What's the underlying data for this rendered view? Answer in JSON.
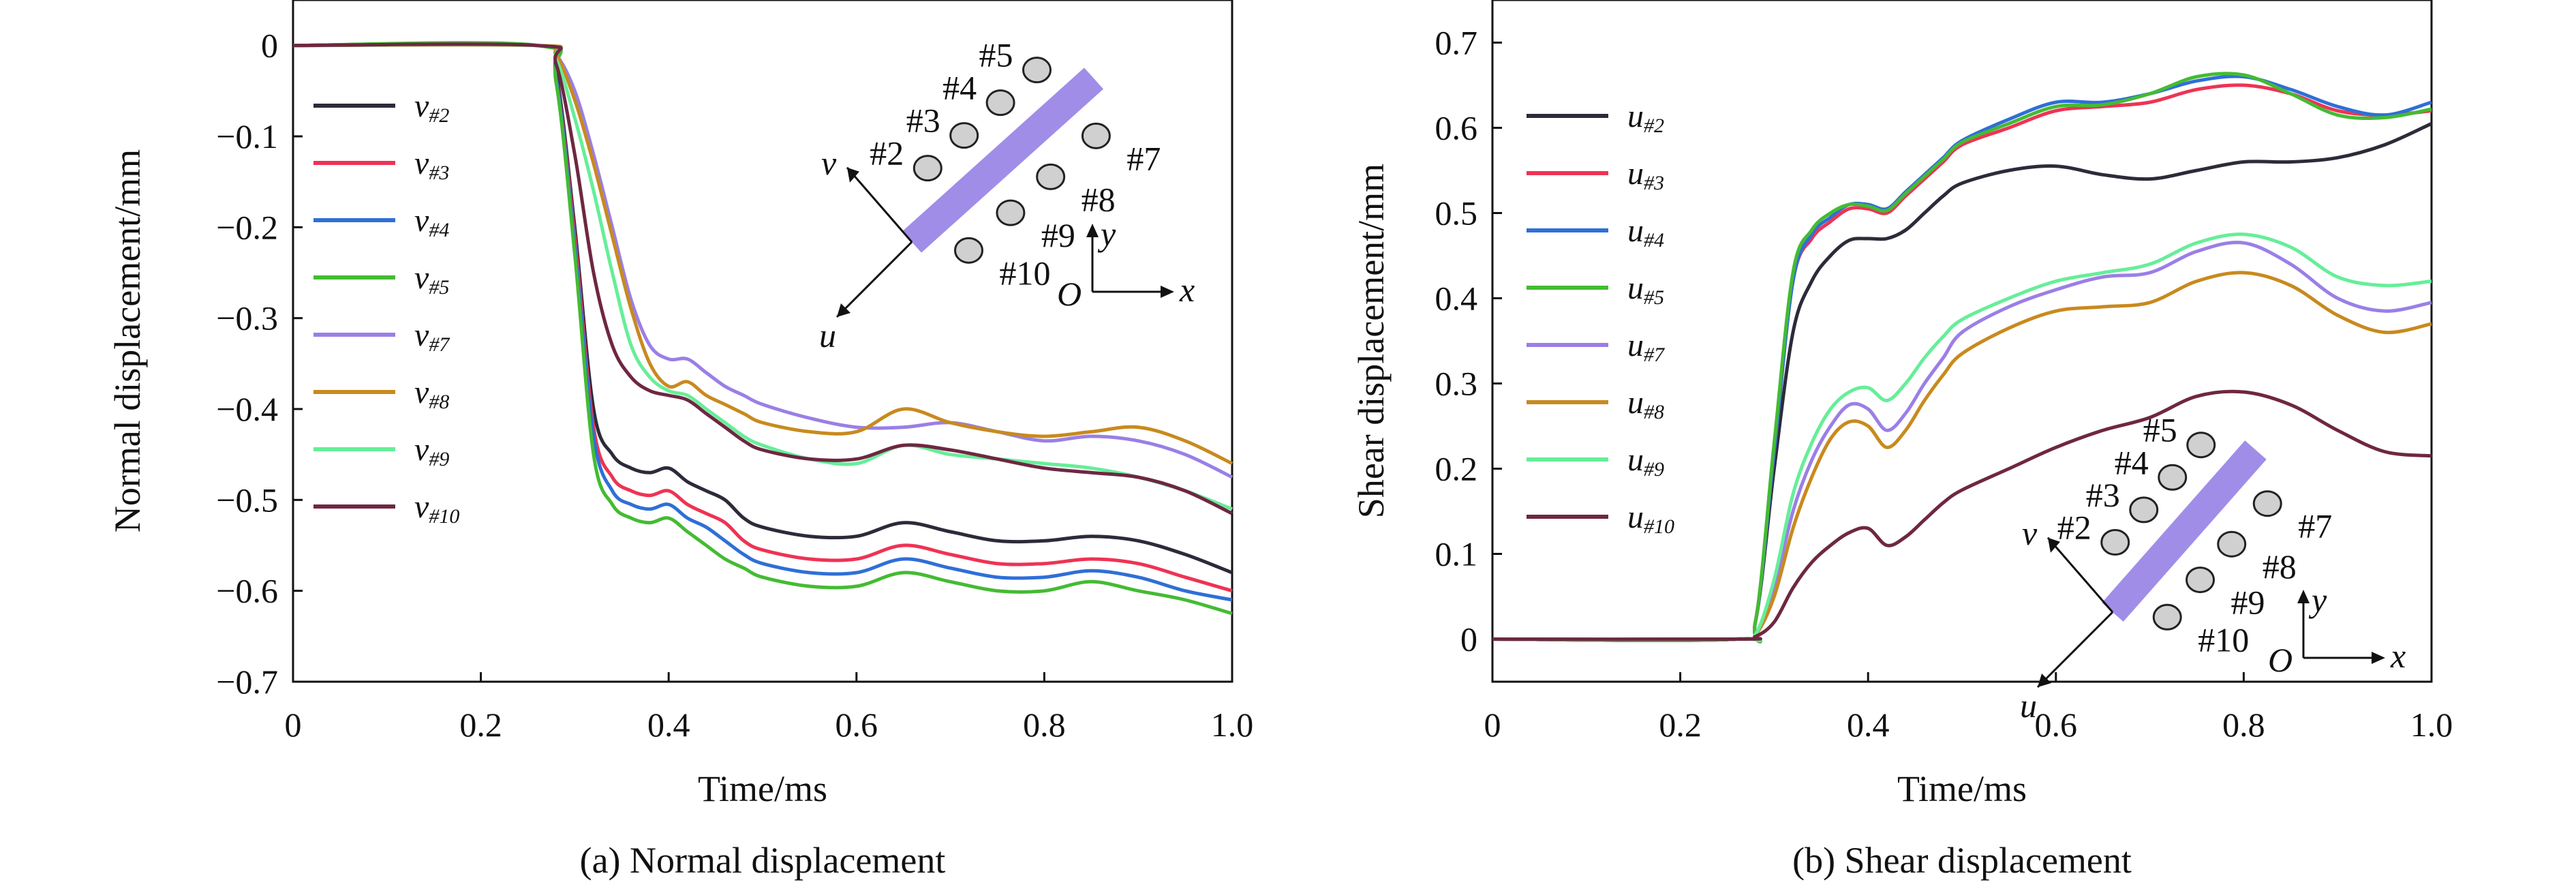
{
  "chart_data": [
    {
      "type": "line",
      "caption": "(a) Normal displacement",
      "xlabel": "Time/ms",
      "ylabel": "Normal displacement/mm",
      "xlim": [
        0,
        1.0
      ],
      "ylim": [
        -0.7,
        0.05
      ],
      "xticks": [
        "0",
        "0.2",
        "0.4",
        "0.6",
        "0.8",
        "1.0"
      ],
      "yticks": [
        "0",
        "−0.1",
        "−0.2",
        "−0.3",
        "−0.4",
        "−0.5",
        "−0.6",
        "−0.7"
      ],
      "grid": false,
      "legend_position": "top-left",
      "x": [
        0,
        0.26,
        0.28,
        0.3,
        0.32,
        0.34,
        0.36,
        0.38,
        0.4,
        0.42,
        0.44,
        0.46,
        0.48,
        0.5,
        0.55,
        0.6,
        0.65,
        0.7,
        0.75,
        0.8,
        0.85,
        0.9,
        0.95,
        1.0
      ],
      "series": [
        {
          "name": "v",
          "sub": "#2",
          "color": "#2b2b3a",
          "values": [
            0,
            0,
            -0.03,
            -0.2,
            -0.4,
            -0.45,
            -0.465,
            -0.47,
            -0.465,
            -0.48,
            -0.49,
            -0.5,
            -0.52,
            -0.53,
            -0.54,
            -0.54,
            -0.525,
            -0.535,
            -0.545,
            -0.545,
            -0.54,
            -0.545,
            -0.56,
            -0.58
          ]
        },
        {
          "name": "v",
          "sub": "#3",
          "color": "#ee3355",
          "values": [
            0,
            0,
            -0.035,
            -0.21,
            -0.42,
            -0.475,
            -0.49,
            -0.495,
            -0.49,
            -0.505,
            -0.515,
            -0.525,
            -0.545,
            -0.555,
            -0.565,
            -0.565,
            -0.55,
            -0.56,
            -0.57,
            -0.57,
            -0.565,
            -0.57,
            -0.585,
            -0.6
          ]
        },
        {
          "name": "v",
          "sub": "#4",
          "color": "#2f6fd6",
          "values": [
            0,
            0,
            -0.035,
            -0.22,
            -0.43,
            -0.49,
            -0.505,
            -0.51,
            -0.505,
            -0.52,
            -0.53,
            -0.545,
            -0.56,
            -0.57,
            -0.58,
            -0.58,
            -0.565,
            -0.575,
            -0.585,
            -0.585,
            -0.578,
            -0.585,
            -0.6,
            -0.61
          ]
        },
        {
          "name": "v",
          "sub": "#5",
          "color": "#44bb33",
          "values": [
            0,
            0,
            -0.04,
            -0.23,
            -0.45,
            -0.505,
            -0.52,
            -0.525,
            -0.52,
            -0.535,
            -0.55,
            -0.565,
            -0.575,
            -0.585,
            -0.595,
            -0.595,
            -0.58,
            -0.59,
            -0.6,
            -0.6,
            -0.59,
            -0.6,
            -0.61,
            -0.625
          ]
        },
        {
          "name": "v",
          "sub": "#7",
          "color": "#9a7fe6",
          "values": [
            0,
            0,
            -0.01,
            -0.05,
            -0.12,
            -0.2,
            -0.28,
            -0.33,
            -0.345,
            -0.345,
            -0.36,
            -0.375,
            -0.385,
            -0.395,
            -0.41,
            -0.42,
            -0.42,
            -0.415,
            -0.425,
            -0.435,
            -0.43,
            -0.435,
            -0.45,
            -0.475
          ]
        },
        {
          "name": "v",
          "sub": "#8",
          "color": "#c88a1e",
          "values": [
            0,
            0,
            -0.01,
            -0.06,
            -0.13,
            -0.21,
            -0.29,
            -0.35,
            -0.375,
            -0.37,
            -0.385,
            -0.395,
            -0.405,
            -0.415,
            -0.425,
            -0.425,
            -0.4,
            -0.415,
            -0.425,
            -0.43,
            -0.425,
            -0.42,
            -0.435,
            -0.46
          ]
        },
        {
          "name": "v",
          "sub": "#9",
          "color": "#66ee99",
          "values": [
            0,
            0,
            -0.015,
            -0.08,
            -0.16,
            -0.25,
            -0.33,
            -0.365,
            -0.38,
            -0.385,
            -0.4,
            -0.415,
            -0.43,
            -0.44,
            -0.455,
            -0.46,
            -0.44,
            -0.45,
            -0.455,
            -0.46,
            -0.465,
            -0.475,
            -0.49,
            -0.51
          ]
        },
        {
          "name": "v",
          "sub": "#10",
          "color": "#6e2742",
          "values": [
            0,
            0,
            -0.02,
            -0.12,
            -0.25,
            -0.33,
            -0.365,
            -0.38,
            -0.385,
            -0.39,
            -0.405,
            -0.42,
            -0.435,
            -0.445,
            -0.455,
            -0.455,
            -0.44,
            -0.445,
            -0.455,
            -0.465,
            -0.47,
            -0.475,
            -0.49,
            -0.515
          ]
        }
      ],
      "inset": {
        "points": [
          "#2",
          "#3",
          "#4",
          "#5",
          "#7",
          "#8",
          "#9",
          "#10"
        ],
        "axes": [
          "v",
          "u",
          "y",
          "x",
          "O"
        ]
      }
    },
    {
      "type": "line",
      "caption": "(b) Shear displacement",
      "xlabel": "Time/ms",
      "ylabel": "Shear displacement/mm",
      "xlim": [
        0,
        1.0
      ],
      "ylim": [
        -0.05,
        0.75
      ],
      "xticks": [
        "0",
        "0.2",
        "0.4",
        "0.6",
        "0.8",
        "1.0"
      ],
      "yticks": [
        "0",
        "0.1",
        "0.2",
        "0.3",
        "0.4",
        "0.5",
        "0.6",
        "0.7"
      ],
      "grid": false,
      "legend_position": "top-left",
      "x": [
        0,
        0.26,
        0.28,
        0.3,
        0.32,
        0.34,
        0.36,
        0.38,
        0.4,
        0.42,
        0.44,
        0.46,
        0.48,
        0.5,
        0.55,
        0.6,
        0.65,
        0.7,
        0.75,
        0.8,
        0.85,
        0.9,
        0.95,
        1.0
      ],
      "series": [
        {
          "name": "u",
          "sub": "#2",
          "color": "#2b2b3a",
          "values": [
            0,
            0,
            0.02,
            0.2,
            0.36,
            0.42,
            0.45,
            0.468,
            0.47,
            0.47,
            0.48,
            0.5,
            0.52,
            0.535,
            0.55,
            0.555,
            0.545,
            0.54,
            0.55,
            0.56,
            0.56,
            0.565,
            0.58,
            0.605
          ]
        },
        {
          "name": "u",
          "sub": "#3",
          "color": "#ee3355",
          "values": [
            0,
            0,
            0.02,
            0.22,
            0.42,
            0.47,
            0.49,
            0.505,
            0.505,
            0.5,
            0.52,
            0.54,
            0.56,
            0.58,
            0.6,
            0.62,
            0.625,
            0.63,
            0.645,
            0.65,
            0.64,
            0.62,
            0.615,
            0.62
          ]
        },
        {
          "name": "u",
          "sub": "#4",
          "color": "#2f6fd6",
          "values": [
            0,
            0,
            0.02,
            0.22,
            0.42,
            0.475,
            0.495,
            0.51,
            0.51,
            0.505,
            0.525,
            0.545,
            0.565,
            0.585,
            0.61,
            0.63,
            0.63,
            0.64,
            0.655,
            0.66,
            0.645,
            0.625,
            0.615,
            0.63
          ]
        },
        {
          "name": "u",
          "sub": "#5",
          "color": "#44bb33",
          "values": [
            0,
            0,
            0.02,
            0.23,
            0.43,
            0.48,
            0.5,
            0.51,
            0.508,
            0.503,
            0.523,
            0.543,
            0.563,
            0.583,
            0.605,
            0.625,
            0.627,
            0.64,
            0.66,
            0.662,
            0.64,
            0.615,
            0.612,
            0.622
          ]
        },
        {
          "name": "u",
          "sub": "#7",
          "color": "#9a7fe6",
          "values": [
            0,
            0,
            0.005,
            0.06,
            0.15,
            0.21,
            0.25,
            0.275,
            0.27,
            0.245,
            0.265,
            0.3,
            0.33,
            0.36,
            0.39,
            0.41,
            0.425,
            0.43,
            0.455,
            0.465,
            0.44,
            0.4,
            0.385,
            0.395
          ]
        },
        {
          "name": "u",
          "sub": "#8",
          "color": "#c88a1e",
          "values": [
            0,
            0,
            0.005,
            0.05,
            0.13,
            0.19,
            0.235,
            0.255,
            0.25,
            0.225,
            0.245,
            0.28,
            0.31,
            0.335,
            0.365,
            0.385,
            0.39,
            0.395,
            0.42,
            0.43,
            0.415,
            0.38,
            0.36,
            0.37
          ]
        },
        {
          "name": "u",
          "sub": "#9",
          "color": "#66ee99",
          "values": [
            0,
            0,
            0.005,
            0.07,
            0.17,
            0.23,
            0.27,
            0.29,
            0.295,
            0.28,
            0.3,
            0.33,
            0.355,
            0.375,
            0.4,
            0.42,
            0.43,
            0.44,
            0.465,
            0.475,
            0.46,
            0.425,
            0.415,
            0.42
          ]
        },
        {
          "name": "u",
          "sub": "#10",
          "color": "#6e2742",
          "values": [
            0,
            0,
            0.003,
            0.02,
            0.06,
            0.09,
            0.11,
            0.125,
            0.13,
            0.11,
            0.12,
            0.14,
            0.16,
            0.175,
            0.2,
            0.225,
            0.245,
            0.26,
            0.285,
            0.29,
            0.275,
            0.245,
            0.22,
            0.215
          ]
        }
      ],
      "inset": {
        "points": [
          "#2",
          "#3",
          "#4",
          "#5",
          "#7",
          "#8",
          "#9",
          "#10"
        ],
        "axes": [
          "v",
          "u",
          "y",
          "x",
          "O"
        ]
      }
    }
  ]
}
